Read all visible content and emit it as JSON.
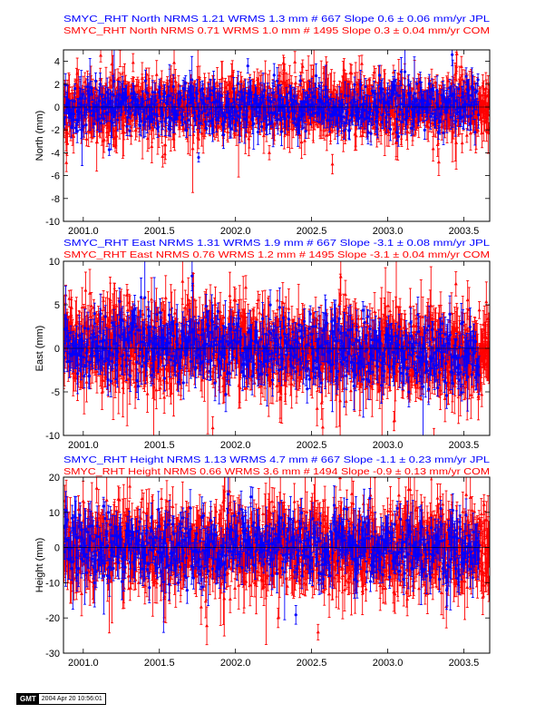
{
  "chart_data": [
    {
      "type": "scatter",
      "ylabel": "North (mm)",
      "ylim": [
        -10,
        5
      ],
      "yticks": [
        4,
        2,
        0,
        -2,
        -4,
        -6,
        -8,
        -10
      ],
      "xlim": [
        2000.87,
        2003.67
      ],
      "xticks": [
        "2001.0",
        "2001.5",
        "2002.0",
        "2002.5",
        "2003.0",
        "2003.5"
      ],
      "xtick_values": [
        2001.0,
        2001.5,
        2002.0,
        2002.5,
        2003.0,
        2003.5
      ],
      "legend": [
        "SMYC_RHT North NRMS 1.21 WRMS  1.3 mm # 667 Slope    0.6 ±  0.06 mm/yr JPL",
        "SMYC_RHT North NRMS 0.71 WRMS  1.0 mm # 1495 Slope    0.3 ±  0.04 mm/yr COM"
      ],
      "series": [
        {
          "name": "JPL",
          "color": "#0000ff",
          "marker": "circle",
          "n": 667,
          "wrms": 1.3,
          "slope": 0.6,
          "slope_err": 0.06,
          "sigma": 1.0
        },
        {
          "name": "COM",
          "color": "#ff0000",
          "marker": "triangle",
          "n": 1495,
          "wrms": 1.0,
          "slope": 0.3,
          "slope_err": 0.04,
          "sigma": 1.2
        }
      ]
    },
    {
      "type": "scatter",
      "ylabel": "East (mm)",
      "ylim": [
        -10,
        10
      ],
      "yticks": [
        10,
        5,
        0,
        -5,
        -10
      ],
      "xlim": [
        2000.87,
        2003.67
      ],
      "xticks": [
        "2001.0",
        "2001.5",
        "2002.0",
        "2002.5",
        "2003.0",
        "2003.5"
      ],
      "xtick_values": [
        2001.0,
        2001.5,
        2002.0,
        2002.5,
        2003.0,
        2003.5
      ],
      "legend": [
        "SMYC_RHT East NRMS 1.31 WRMS  1.9 mm # 667 Slope   -3.1 ±  0.08 mm/yr JPL",
        "SMYC_RHT East NRMS 0.76 WRMS  1.2 mm # 1495 Slope   -3.1 ±  0.04 mm/yr COM"
      ],
      "series": [
        {
          "name": "JPL",
          "color": "#0000ff",
          "marker": "circle",
          "n": 667,
          "wrms": 1.9,
          "slope": -3.1,
          "slope_err": 0.08,
          "sigma": 1.8
        },
        {
          "name": "COM",
          "color": "#ff0000",
          "marker": "triangle",
          "n": 1495,
          "wrms": 1.2,
          "slope": -3.1,
          "slope_err": 0.04,
          "sigma": 2.2
        }
      ]
    },
    {
      "type": "scatter",
      "ylabel": "Height (mm)",
      "ylim": [
        -30,
        20
      ],
      "yticks": [
        20,
        10,
        0,
        -10,
        -20,
        -30
      ],
      "xlim": [
        2000.87,
        2003.67
      ],
      "xticks": [
        "2001.0",
        "2001.5",
        "2002.0",
        "2002.5",
        "2003.0",
        "2003.5"
      ],
      "xtick_values": [
        2001.0,
        2001.5,
        2002.0,
        2002.5,
        2003.0,
        2003.5
      ],
      "legend": [
        "SMYC_RHT Height NRMS 1.13 WRMS  4.7 mm # 667 Slope   -1.1 ±  0.23 mm/yr JPL",
        "SMYC_RHT Height NRMS 0.66 WRMS  3.6 mm # 1494 Slope   -0.9 ±  0.13 mm/yr COM"
      ],
      "series": [
        {
          "name": "JPL",
          "color": "#0000ff",
          "marker": "circle",
          "n": 667,
          "wrms": 4.7,
          "slope": -1.1,
          "slope_err": 0.23,
          "sigma": 4.5
        },
        {
          "name": "COM",
          "color": "#ff0000",
          "marker": "triangle",
          "n": 1494,
          "wrms": 3.6,
          "slope": -0.9,
          "slope_err": 0.13,
          "sigma": 5.5
        }
      ]
    }
  ],
  "footer": {
    "logo": "GMT",
    "timestamp": "2004 Apr 20 10:56:01"
  }
}
